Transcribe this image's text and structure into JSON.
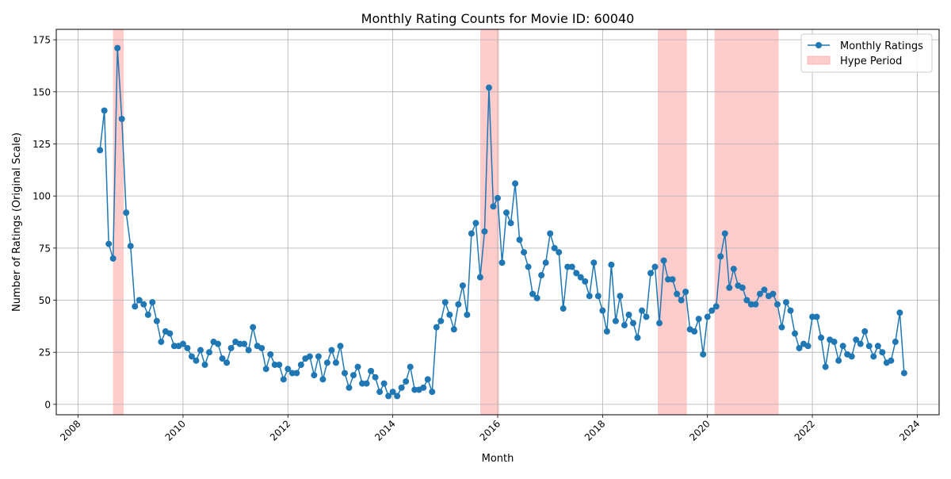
{
  "chart_data": {
    "type": "line",
    "title": "Monthly Rating Counts for Movie ID: 60040",
    "xlabel": "Month",
    "ylabel": "Number of Ratings (Original Scale)",
    "xlim": [
      "2007-08-01",
      "2024-06-01"
    ],
    "ylim": [
      -5,
      180
    ],
    "grid": true,
    "legend_position": "top-right",
    "x_ticks": [
      "2008",
      "2010",
      "2012",
      "2014",
      "2016",
      "2018",
      "2020",
      "2022",
      "2024"
    ],
    "y_ticks": [
      0,
      25,
      50,
      75,
      100,
      125,
      150,
      175
    ],
    "colors": {
      "line": "#1f77b4",
      "hype": "#ff9999"
    },
    "series": [
      {
        "name": "Monthly Ratings",
        "x": [
          "2008-06",
          "2008-07",
          "2008-08",
          "2008-09",
          "2008-10",
          "2008-11",
          "2008-12",
          "2009-01",
          "2009-02",
          "2009-03",
          "2009-04",
          "2009-05",
          "2009-06",
          "2009-07",
          "2009-08",
          "2009-09",
          "2009-10",
          "2009-11",
          "2009-12",
          "2010-01",
          "2010-02",
          "2010-03",
          "2010-04",
          "2010-05",
          "2010-06",
          "2010-07",
          "2010-08",
          "2010-09",
          "2010-10",
          "2010-11",
          "2010-12",
          "2011-01",
          "2011-02",
          "2011-03",
          "2011-04",
          "2011-05",
          "2011-06",
          "2011-07",
          "2011-08",
          "2011-09",
          "2011-10",
          "2011-11",
          "2011-12",
          "2012-01",
          "2012-02",
          "2012-03",
          "2012-04",
          "2012-05",
          "2012-06",
          "2012-07",
          "2012-08",
          "2012-09",
          "2012-10",
          "2012-11",
          "2012-12",
          "2013-01",
          "2013-02",
          "2013-03",
          "2013-04",
          "2013-05",
          "2013-06",
          "2013-07",
          "2013-08",
          "2013-09",
          "2013-10",
          "2013-11",
          "2013-12",
          "2014-01",
          "2014-02",
          "2014-03",
          "2014-04",
          "2014-05",
          "2014-06",
          "2014-07",
          "2014-08",
          "2014-09",
          "2014-10",
          "2014-11",
          "2014-12",
          "2015-01",
          "2015-02",
          "2015-03",
          "2015-04",
          "2015-05",
          "2015-06",
          "2015-07",
          "2015-08",
          "2015-09",
          "2015-10",
          "2015-11",
          "2015-12",
          "2016-01",
          "2016-02",
          "2016-03",
          "2016-04",
          "2016-05",
          "2016-06",
          "2016-07",
          "2016-08",
          "2016-09",
          "2016-10",
          "2016-11",
          "2016-12",
          "2017-01",
          "2017-02",
          "2017-03",
          "2017-04",
          "2017-05",
          "2017-06",
          "2017-07",
          "2017-08",
          "2017-09",
          "2017-10",
          "2017-11",
          "2017-12",
          "2018-01",
          "2018-02",
          "2018-03",
          "2018-04",
          "2018-05",
          "2018-06",
          "2018-07",
          "2018-08",
          "2018-09",
          "2018-10",
          "2018-11",
          "2018-12",
          "2019-01",
          "2019-02",
          "2019-03",
          "2019-04",
          "2019-05",
          "2019-06",
          "2019-07",
          "2019-08",
          "2019-09",
          "2019-10",
          "2019-11",
          "2019-12",
          "2020-01",
          "2020-02",
          "2020-03",
          "2020-04",
          "2020-05",
          "2020-06",
          "2020-07",
          "2020-08",
          "2020-09",
          "2020-10",
          "2020-11",
          "2020-12",
          "2021-01",
          "2021-02",
          "2021-03",
          "2021-04",
          "2021-05",
          "2021-06",
          "2021-07",
          "2021-08",
          "2021-09",
          "2021-10",
          "2021-11",
          "2021-12",
          "2022-01",
          "2022-02",
          "2022-03",
          "2022-04",
          "2022-05",
          "2022-06",
          "2022-07",
          "2022-08",
          "2022-09",
          "2022-10",
          "2022-11",
          "2022-12",
          "2023-01",
          "2023-02",
          "2023-03",
          "2023-04",
          "2023-05",
          "2023-06",
          "2023-07",
          "2023-08",
          "2023-09",
          "2023-10"
        ],
        "values": [
          122,
          141,
          77,
          70,
          171,
          137,
          92,
          76,
          47,
          50,
          48,
          43,
          49,
          40,
          30,
          35,
          34,
          28,
          28,
          29,
          27,
          23,
          21,
          26,
          19,
          25,
          30,
          29,
          22,
          20,
          27,
          30,
          29,
          29,
          26,
          37,
          28,
          27,
          17,
          24,
          19,
          19,
          12,
          17,
          15,
          15,
          19,
          22,
          23,
          14,
          23,
          12,
          20,
          26,
          20,
          28,
          15,
          8,
          14,
          18,
          10,
          10,
          16,
          13,
          6,
          10,
          4,
          6,
          4,
          8,
          11,
          18,
          7,
          7,
          8,
          12,
          6,
          37,
          40,
          49,
          43,
          36,
          48,
          57,
          43,
          82,
          87,
          61,
          83,
          152,
          95,
          99,
          68,
          92,
          87,
          106,
          79,
          73,
          66,
          53,
          51,
          62,
          68,
          82,
          75,
          73,
          46,
          66,
          66,
          63,
          61,
          59,
          52,
          68,
          52,
          45,
          35,
          67,
          40,
          52,
          38,
          43,
          39,
          32,
          45,
          42,
          63,
          66,
          39,
          69,
          60,
          60,
          53,
          50,
          54,
          36,
          35,
          41,
          24,
          42,
          45,
          47,
          71,
          82,
          56,
          65,
          57,
          56,
          50,
          48,
          48,
          53,
          55,
          52,
          53,
          48,
          37,
          49,
          45,
          34,
          27,
          29,
          28,
          42,
          42,
          32,
          18,
          31,
          30,
          21,
          28,
          24,
          23,
          31,
          29,
          35,
          28,
          23,
          28,
          25,
          20,
          21,
          30,
          44,
          15
        ]
      }
    ],
    "hype_periods": [
      [
        "2008-09-01",
        "2008-11-15"
      ],
      [
        "2015-09-01",
        "2016-01-10"
      ],
      [
        "2019-01-20",
        "2019-08-10"
      ],
      [
        "2020-02-20",
        "2021-05-10"
      ]
    ],
    "legend": {
      "line_label": "Monthly Ratings",
      "hype_label": "Hype Period"
    }
  }
}
